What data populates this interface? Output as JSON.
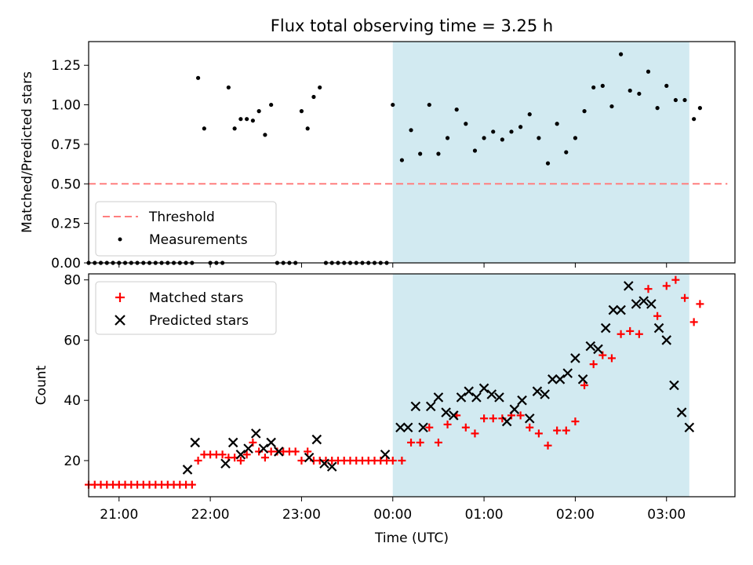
{
  "title": "Flux total observing time = 3.25 h",
  "colors": {
    "span": "#add8e6",
    "threshold": "#ff7f7f",
    "measurement": "#000000",
    "matched": "#ff0000",
    "predicted": "#000000"
  },
  "chart_data": [
    {
      "type": "scatter",
      "panel": "top",
      "title": "Flux total observing time = 3.25 h",
      "xlabel": "",
      "ylabel": "Matched/Predicted stars",
      "xlim": [
        "20:40",
        "03:45"
      ],
      "ylim": [
        0,
        1.4
      ],
      "yticks": [
        "0.00",
        "0.25",
        "0.50",
        "0.75",
        "1.00",
        "1.25"
      ],
      "xticks": [
        "21:00",
        "22:00",
        "23:00",
        "00:00",
        "01:00",
        "02:00",
        "03:00"
      ],
      "shaded_span": [
        "00:00",
        "03:15"
      ],
      "legend": {
        "position": "lower-left",
        "entries": [
          "Threshold",
          "Measurements"
        ]
      },
      "threshold": {
        "name": "Threshold",
        "value": 0.5,
        "x": [
          "20:40",
          "03:40"
        ]
      },
      "series": [
        {
          "name": "Measurements",
          "x": [
            "20:40",
            "20:44",
            "20:48",
            "20:52",
            "20:56",
            "21:00",
            "21:04",
            "21:08",
            "21:12",
            "21:16",
            "21:20",
            "21:24",
            "21:28",
            "21:32",
            "21:36",
            "21:40",
            "21:44",
            "21:48",
            "21:52",
            "21:56",
            "22:00",
            "22:04",
            "22:08",
            "22:12",
            "22:16",
            "22:20",
            "22:24",
            "22:28",
            "22:32",
            "22:36",
            "22:40",
            "22:44",
            "22:48",
            "22:52",
            "22:56",
            "23:00",
            "23:04",
            "23:08",
            "23:12",
            "23:16",
            "23:20",
            "23:24",
            "23:28",
            "23:32",
            "23:36",
            "23:40",
            "23:44",
            "23:48",
            "23:52",
            "23:56",
            "00:00",
            "00:06",
            "00:12",
            "00:18",
            "00:24",
            "00:30",
            "00:36",
            "00:42",
            "00:48",
            "00:54",
            "01:00",
            "01:06",
            "01:12",
            "01:18",
            "01:24",
            "01:30",
            "01:36",
            "01:42",
            "01:48",
            "01:54",
            "02:00",
            "02:06",
            "02:12",
            "02:18",
            "02:24",
            "02:30",
            "02:36",
            "02:42",
            "02:48",
            "02:54",
            "03:00",
            "03:06",
            "03:12",
            "03:18",
            "03:22"
          ],
          "y": [
            0,
            0,
            0,
            0,
            0,
            0,
            0,
            0,
            0,
            0,
            0,
            0,
            0,
            0,
            0,
            0,
            0,
            0,
            1.17,
            0.85,
            0,
            0,
            0,
            1.11,
            0.85,
            0.91,
            0.91,
            0.9,
            0.96,
            0.81,
            1.0,
            0,
            0,
            0,
            0,
            0.96,
            0.85,
            1.05,
            1.11,
            0,
            0,
            0,
            0,
            0,
            0,
            0,
            0,
            0,
            0,
            0,
            1.0,
            0.65,
            0.84,
            0.69,
            1.0,
            0.69,
            0.79,
            0.97,
            0.88,
            0.71,
            0.79,
            0.83,
            0.78,
            0.83,
            0.86,
            0.94,
            0.79,
            0.63,
            0.88,
            0.7,
            0.79,
            0.96,
            1.11,
            1.12,
            0.99,
            1.32,
            1.09,
            1.07,
            1.21,
            0.98,
            1.12,
            1.03,
            1.03,
            0.91,
            0.98
          ]
        }
      ]
    },
    {
      "type": "scatter",
      "panel": "bottom",
      "xlabel": "Time (UTC)",
      "ylabel": "Count",
      "xlim": [
        "20:40",
        "03:45"
      ],
      "ylim": [
        8,
        82
      ],
      "yticks": [
        "20",
        "40",
        "60",
        "80"
      ],
      "xticks": [
        "21:00",
        "22:00",
        "23:00",
        "00:00",
        "01:00",
        "02:00",
        "03:00"
      ],
      "shaded_span": [
        "00:00",
        "03:15"
      ],
      "legend": {
        "position": "upper-left",
        "entries": [
          "Matched stars",
          "Predicted stars"
        ]
      },
      "series": [
        {
          "name": "Matched stars",
          "marker": "plus",
          "x": [
            "20:40",
            "20:44",
            "20:48",
            "20:52",
            "20:56",
            "21:00",
            "21:04",
            "21:08",
            "21:12",
            "21:16",
            "21:20",
            "21:24",
            "21:28",
            "21:32",
            "21:36",
            "21:40",
            "21:44",
            "21:48",
            "21:52",
            "21:56",
            "22:00",
            "22:04",
            "22:08",
            "22:12",
            "22:16",
            "22:20",
            "22:24",
            "22:28",
            "22:32",
            "22:36",
            "22:40",
            "22:44",
            "22:48",
            "22:52",
            "22:56",
            "23:00",
            "23:04",
            "23:08",
            "23:12",
            "23:16",
            "23:20",
            "23:24",
            "23:28",
            "23:32",
            "23:36",
            "23:40",
            "23:44",
            "23:48",
            "23:52",
            "23:56",
            "00:00",
            "00:06",
            "00:12",
            "00:18",
            "00:24",
            "00:30",
            "00:36",
            "00:42",
            "00:48",
            "00:54",
            "01:00",
            "01:06",
            "01:12",
            "01:18",
            "01:24",
            "01:30",
            "01:36",
            "01:42",
            "01:48",
            "01:54",
            "02:00",
            "02:06",
            "02:12",
            "02:18",
            "02:24",
            "02:30",
            "02:36",
            "02:42",
            "02:48",
            "02:54",
            "03:00",
            "03:06",
            "03:12",
            "03:18",
            "03:22"
          ],
          "y": [
            12,
            12,
            12,
            12,
            12,
            12,
            12,
            12,
            12,
            12,
            12,
            12,
            12,
            12,
            12,
            12,
            12,
            12,
            20,
            22,
            22,
            22,
            22,
            21,
            21,
            20,
            22,
            26,
            23,
            21,
            23,
            23,
            23,
            23,
            23,
            20,
            23,
            20,
            20,
            20,
            20,
            20,
            20,
            20,
            20,
            20,
            20,
            20,
            20,
            20,
            20,
            20,
            26,
            26,
            31,
            26,
            32,
            35,
            31,
            29,
            34,
            34,
            34,
            35,
            35,
            31,
            29,
            25,
            30,
            30,
            33,
            45,
            52,
            55,
            54,
            62,
            63,
            62,
            77,
            68,
            78,
            80,
            74,
            66,
            72
          ]
        },
        {
          "name": "Predicted stars",
          "marker": "x",
          "x": [
            "21:45",
            "21:50",
            "22:10",
            "22:15",
            "22:20",
            "22:25",
            "22:30",
            "22:35",
            "22:40",
            "22:45",
            "23:05",
            "23:10",
            "23:15",
            "23:20",
            "23:55",
            "00:05",
            "00:10",
            "00:15",
            "00:20",
            "00:25",
            "00:30",
            "00:35",
            "00:40",
            "00:45",
            "00:50",
            "00:55",
            "01:00",
            "01:05",
            "01:10",
            "01:15",
            "01:20",
            "01:25",
            "01:30",
            "01:35",
            "01:40",
            "01:45",
            "01:50",
            "01:55",
            "02:00",
            "02:05",
            "02:10",
            "02:15",
            "02:20",
            "02:25",
            "02:30",
            "02:35",
            "02:40",
            "02:45",
            "02:50",
            "02:55",
            "03:00",
            "03:05",
            "03:10",
            "03:15"
          ],
          "y": [
            17,
            26,
            19,
            26,
            22,
            24,
            29,
            24,
            26,
            23,
            21,
            27,
            19,
            18,
            22,
            31,
            31,
            38,
            31,
            38,
            41,
            36,
            35,
            41,
            43,
            41,
            44,
            42,
            41,
            33,
            37,
            40,
            34,
            43,
            42,
            47,
            47,
            49,
            54,
            47,
            58,
            57,
            64,
            70,
            70,
            78,
            72,
            73,
            72,
            64,
            60,
            45,
            36,
            31
          ]
        }
      ]
    }
  ]
}
